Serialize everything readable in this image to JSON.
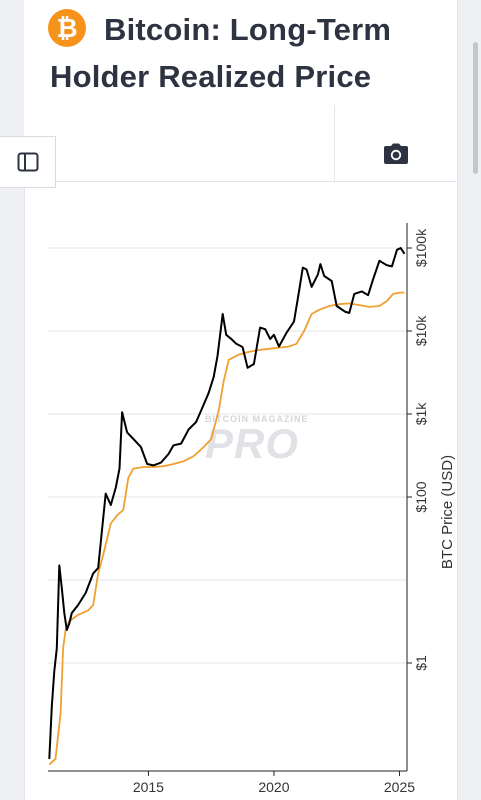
{
  "header": {
    "icon_glyph": "₿",
    "title": "Bitcoin: Long-Term Holder Realized Price"
  },
  "toolbar": {
    "sidebar_icon": "sidebar-toggle-icon",
    "camera_icon": "camera-icon"
  },
  "watermark": {
    "line1": "BITCOIN MAGAZINE",
    "line2": "PRO"
  },
  "colors": {
    "btc_price": "#000000",
    "lth_realized_price": "#f0a030",
    "brand": "#f7931a"
  },
  "chart_data": {
    "type": "line",
    "title": "",
    "xlabel": "",
    "ylabel": "BTC Price (USD)",
    "y_scale": "log",
    "ylim": [
      0.05,
      200000
    ],
    "xlim": [
      2011.0,
      2025.3
    ],
    "x_ticks": [
      {
        "value": 2015,
        "label": "2015"
      },
      {
        "value": 2020,
        "label": "2020"
      },
      {
        "value": 2025,
        "label": "2025"
      }
    ],
    "y_ticks": [
      {
        "value": 1,
        "label": "$1"
      },
      {
        "value": 100,
        "label": "$100"
      },
      {
        "value": 1000,
        "label": "$1k"
      },
      {
        "value": 10000,
        "label": "$10k"
      },
      {
        "value": 100000,
        "label": "$100k"
      }
    ],
    "grid": true,
    "series": [
      {
        "name": "",
        "color": "#000000",
        "points": [
          [
            2011.05,
            0.07
          ],
          [
            2011.15,
            0.3
          ],
          [
            2011.25,
            0.8
          ],
          [
            2011.35,
            1.5
          ],
          [
            2011.45,
            15
          ],
          [
            2011.55,
            8
          ],
          [
            2011.65,
            4
          ],
          [
            2011.75,
            2.5
          ],
          [
            2011.85,
            3
          ],
          [
            2011.95,
            4
          ],
          [
            2012.2,
            5
          ],
          [
            2012.5,
            7
          ],
          [
            2012.8,
            12
          ],
          [
            2013.0,
            14
          ],
          [
            2013.15,
            40
          ],
          [
            2013.3,
            110
          ],
          [
            2013.5,
            80
          ],
          [
            2013.7,
            130
          ],
          [
            2013.85,
            220
          ],
          [
            2013.95,
            1050
          ],
          [
            2014.15,
            600
          ],
          [
            2014.4,
            500
          ],
          [
            2014.7,
            400
          ],
          [
            2014.95,
            250
          ],
          [
            2015.2,
            240
          ],
          [
            2015.5,
            260
          ],
          [
            2015.8,
            330
          ],
          [
            2016.0,
            420
          ],
          [
            2016.3,
            440
          ],
          [
            2016.6,
            650
          ],
          [
            2016.9,
            800
          ],
          [
            2017.1,
            1100
          ],
          [
            2017.4,
            1800
          ],
          [
            2017.6,
            2800
          ],
          [
            2017.75,
            5000
          ],
          [
            2017.96,
            16000
          ],
          [
            2018.1,
            9000
          ],
          [
            2018.3,
            8000
          ],
          [
            2018.5,
            7000
          ],
          [
            2018.75,
            6400
          ],
          [
            2018.95,
            3600
          ],
          [
            2019.2,
            4000
          ],
          [
            2019.45,
            11000
          ],
          [
            2019.65,
            10500
          ],
          [
            2019.85,
            8000
          ],
          [
            2020.0,
            9000
          ],
          [
            2020.2,
            6500
          ],
          [
            2020.5,
            9500
          ],
          [
            2020.8,
            13000
          ],
          [
            2021.0,
            30000
          ],
          [
            2021.15,
            58000
          ],
          [
            2021.3,
            55000
          ],
          [
            2021.5,
            34000
          ],
          [
            2021.75,
            48000
          ],
          [
            2021.85,
            64000
          ],
          [
            2022.0,
            46000
          ],
          [
            2022.3,
            40000
          ],
          [
            2022.5,
            20000
          ],
          [
            2022.85,
            17000
          ],
          [
            2023.0,
            16500
          ],
          [
            2023.2,
            28000
          ],
          [
            2023.5,
            30000
          ],
          [
            2023.75,
            27000
          ],
          [
            2023.95,
            42000
          ],
          [
            2024.2,
            70000
          ],
          [
            2024.5,
            62000
          ],
          [
            2024.7,
            60000
          ],
          [
            2024.9,
            95000
          ],
          [
            2025.05,
            100000
          ],
          [
            2025.2,
            85000
          ]
        ]
      },
      {
        "name": "",
        "color": "#f0a030",
        "points": [
          [
            2011.05,
            0.06
          ],
          [
            2011.3,
            0.07
          ],
          [
            2011.5,
            0.25
          ],
          [
            2011.6,
            1.5
          ],
          [
            2011.7,
            2.5
          ],
          [
            2011.85,
            3.2
          ],
          [
            2012.2,
            3.8
          ],
          [
            2012.6,
            4.3
          ],
          [
            2012.8,
            5
          ],
          [
            2013.0,
            12
          ],
          [
            2013.2,
            20
          ],
          [
            2013.5,
            48
          ],
          [
            2013.75,
            60
          ],
          [
            2014.0,
            70
          ],
          [
            2014.2,
            170
          ],
          [
            2014.4,
            220
          ],
          [
            2014.8,
            230
          ],
          [
            2015.2,
            230
          ],
          [
            2015.6,
            235
          ],
          [
            2016.0,
            250
          ],
          [
            2016.4,
            270
          ],
          [
            2016.8,
            310
          ],
          [
            2017.2,
            400
          ],
          [
            2017.5,
            500
          ],
          [
            2017.8,
            1100
          ],
          [
            2018.0,
            2500
          ],
          [
            2018.2,
            4500
          ],
          [
            2018.6,
            5200
          ],
          [
            2019.0,
            5600
          ],
          [
            2019.4,
            5900
          ],
          [
            2019.8,
            6100
          ],
          [
            2020.2,
            6300
          ],
          [
            2020.6,
            6500
          ],
          [
            2020.9,
            7000
          ],
          [
            2021.2,
            10000
          ],
          [
            2021.5,
            16000
          ],
          [
            2021.8,
            18000
          ],
          [
            2022.2,
            20000
          ],
          [
            2022.6,
            21000
          ],
          [
            2023.0,
            21500
          ],
          [
            2023.4,
            20500
          ],
          [
            2023.8,
            19500
          ],
          [
            2024.2,
            20000
          ],
          [
            2024.5,
            23000
          ],
          [
            2024.75,
            28000
          ],
          [
            2025.0,
            29000
          ],
          [
            2025.2,
            29000
          ]
        ]
      }
    ]
  }
}
